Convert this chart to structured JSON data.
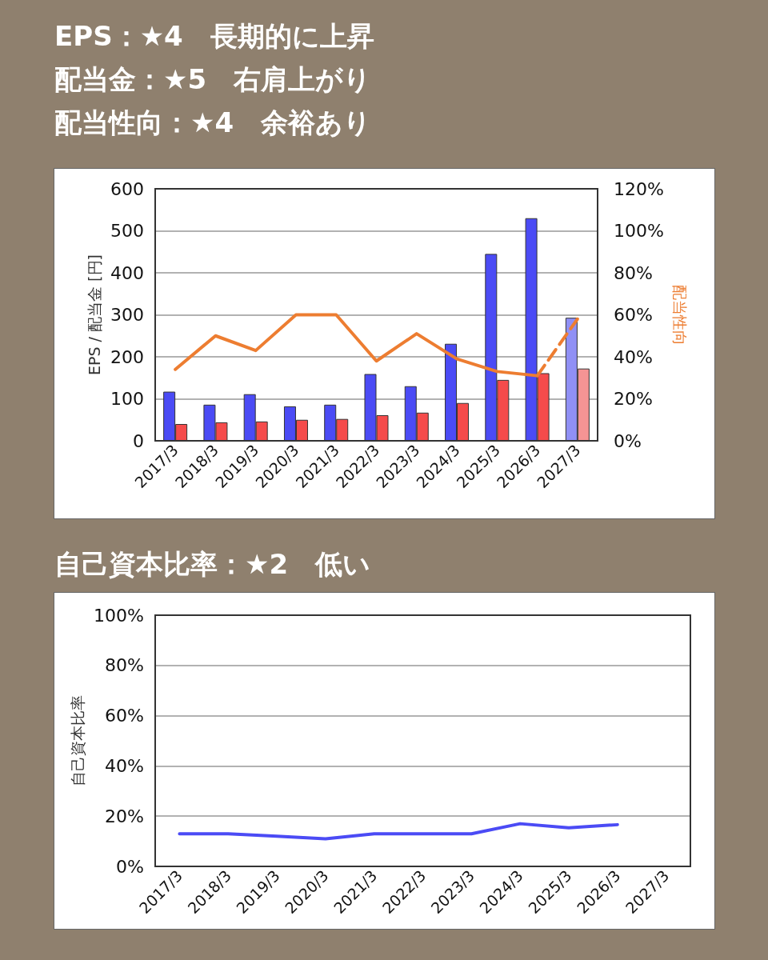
{
  "chart_data": [
    {
      "type": "bar",
      "title": "EPS：★4　長期的に上昇",
      "annotations": [
        "配当金：★5　右肩上がり",
        "配当性向：★4　余裕あり"
      ],
      "ylabel": "EPS / 配当金 [円]",
      "y2label": "配当性向",
      "categories": [
        "2017/3",
        "2018/3",
        "2019/3",
        "2020/3",
        "2021/3",
        "2022/3",
        "2023/3",
        "2024/3",
        "2025/3",
        "2026/3",
        "2027/3"
      ],
      "series": [
        {
          "colors": [
            "#4b4bf5",
            "#4b4bf5",
            "#4b4bf5",
            "#4b4bf5",
            "#4b4bf5",
            "#4b4bf5",
            "#4b4bf5",
            "#4b4bf5",
            "#4b4bf5",
            "#4b4bf5",
            "#9090f5"
          ],
          "values": [
            117,
            86,
            111,
            82,
            86,
            159,
            130,
            231,
            445,
            530,
            293
          ]
        },
        {
          "colors": [
            "#f54b4b",
            "#f54b4b",
            "#f54b4b",
            "#f54b4b",
            "#f54b4b",
            "#f54b4b",
            "#f54b4b",
            "#f54b4b",
            "#f54b4b",
            "#f54b4b",
            "#f59494"
          ],
          "values": [
            40,
            44,
            46,
            50,
            52,
            61,
            67,
            90,
            145,
            161,
            172
          ]
        },
        {
          "type": "line",
          "axis": "y2",
          "color": "#ed7d31",
          "line_style": "solid",
          "values": [
            34,
            50,
            43,
            60,
            60,
            38,
            51,
            39,
            33,
            31,
            null
          ]
        },
        {
          "type": "line",
          "axis": "y2",
          "color": "#ed7d31",
          "line_style": "dashed",
          "values": [
            null,
            null,
            null,
            null,
            null,
            null,
            null,
            null,
            null,
            31,
            58
          ]
        }
      ],
      "ylim": [
        0,
        600
      ],
      "yticks": [
        0,
        100,
        200,
        300,
        400,
        500,
        600
      ],
      "y2lim": [
        0,
        120
      ],
      "y2ticks": [
        {
          "value": 0,
          "label": "0%"
        },
        {
          "value": 20,
          "label": "20%"
        },
        {
          "value": 40,
          "label": "40%"
        },
        {
          "value": 60,
          "label": "60%"
        },
        {
          "value": 80,
          "label": "80%"
        },
        {
          "value": 100,
          "label": "100%"
        },
        {
          "value": 120,
          "label": "120%"
        }
      ],
      "grid": "y",
      "marker": "none"
    },
    {
      "type": "line",
      "title": "自己資本比率：★2　低い",
      "ylabel": "自己資本比率",
      "categories": [
        "2017/3",
        "2018/3",
        "2019/3",
        "2020/3",
        "2021/3",
        "2022/3",
        "2023/3",
        "2024/3",
        "2025/3",
        "2026/3",
        "2027/3"
      ],
      "series": [
        {
          "color": "#4b4bf5",
          "values": [
            13,
            13,
            12,
            11,
            13,
            13,
            13,
            17,
            15.4,
            16.6,
            null
          ]
        }
      ],
      "ylim": [
        0,
        100
      ],
      "yticks": [
        {
          "value": 0,
          "label": "0%"
        },
        {
          "value": 20,
          "label": "20%"
        },
        {
          "value": 40,
          "label": "40%"
        },
        {
          "value": 60,
          "label": "60%"
        },
        {
          "value": 80,
          "label": "80%"
        },
        {
          "value": 100,
          "label": "100%"
        }
      ],
      "grid": "y",
      "marker": "none",
      "line_style": "solid"
    }
  ]
}
